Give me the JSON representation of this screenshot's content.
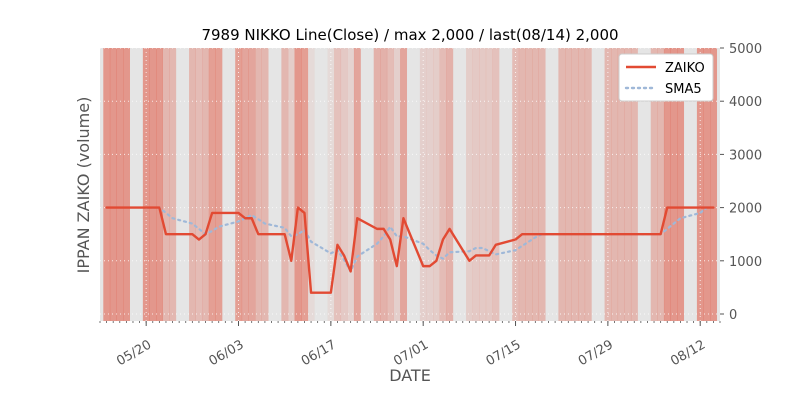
{
  "chart_data": {
    "type": "line",
    "title": "7989 NIKKO Line(Close) / max 2,000 / last(08/14) 2,000",
    "xlabel": "DATE",
    "ylabel": "IPPAN ZAIKO (volume)",
    "y_axis_side": "right",
    "ylim": [
      0,
      5000
    ],
    "y_ticks": [
      0,
      1000,
      2000,
      3000,
      4000,
      5000
    ],
    "y_tick_labels": [
      "0",
      "1000",
      "2000",
      "3000",
      "4000",
      "5000"
    ],
    "x_range": [
      "2024-05-13",
      "2024-08-15"
    ],
    "x_ticks": [
      "2024-05-20",
      "2024-06-03",
      "2024-06-17",
      "2024-07-01",
      "2024-07-15",
      "2024-07-29",
      "2024-08-12"
    ],
    "x_tick_labels": [
      "05/20",
      "06/03",
      "06/17",
      "07/01",
      "07/15",
      "07/29",
      "08/12"
    ],
    "grid": true,
    "legend_position": "top-right",
    "background_shading": "daily vertical bands, darker red where volume is high",
    "series": [
      {
        "name": "ZAIKO",
        "style": "solid",
        "color": "#e24a33",
        "points": [
          [
            "2024-05-14",
            2000
          ],
          [
            "2024-05-15",
            2000
          ],
          [
            "2024-05-16",
            2000
          ],
          [
            "2024-05-17",
            2000
          ],
          [
            "2024-05-20",
            2000
          ],
          [
            "2024-05-21",
            2000
          ],
          [
            "2024-05-22",
            2000
          ],
          [
            "2024-05-23",
            1500
          ],
          [
            "2024-05-24",
            1500
          ],
          [
            "2024-05-27",
            1500
          ],
          [
            "2024-05-28",
            1400
          ],
          [
            "2024-05-29",
            1500
          ],
          [
            "2024-05-30",
            1900
          ],
          [
            "2024-05-31",
            1900
          ],
          [
            "2024-06-03",
            1900
          ],
          [
            "2024-06-04",
            1800
          ],
          [
            "2024-06-05",
            1800
          ],
          [
            "2024-06-06",
            1500
          ],
          [
            "2024-06-07",
            1500
          ],
          [
            "2024-06-10",
            1500
          ],
          [
            "2024-06-11",
            1000
          ],
          [
            "2024-06-12",
            2000
          ],
          [
            "2024-06-13",
            1900
          ],
          [
            "2024-06-14",
            400
          ],
          [
            "2024-06-17",
            400
          ],
          [
            "2024-06-18",
            1300
          ],
          [
            "2024-06-19",
            1100
          ],
          [
            "2024-06-20",
            800
          ],
          [
            "2024-06-21",
            1800
          ],
          [
            "2024-06-24",
            1600
          ],
          [
            "2024-06-25",
            1600
          ],
          [
            "2024-06-26",
            1400
          ],
          [
            "2024-06-27",
            900
          ],
          [
            "2024-06-28",
            1800
          ],
          [
            "2024-07-01",
            900
          ],
          [
            "2024-07-02",
            900
          ],
          [
            "2024-07-03",
            1000
          ],
          [
            "2024-07-04",
            1400
          ],
          [
            "2024-07-05",
            1600
          ],
          [
            "2024-07-08",
            1000
          ],
          [
            "2024-07-09",
            1100
          ],
          [
            "2024-07-10",
            1100
          ],
          [
            "2024-07-11",
            1100
          ],
          [
            "2024-07-12",
            1300
          ],
          [
            "2024-07-15",
            1400
          ],
          [
            "2024-07-16",
            1500
          ],
          [
            "2024-07-17",
            1500
          ],
          [
            "2024-07-18",
            1500
          ],
          [
            "2024-07-19",
            1500
          ],
          [
            "2024-07-22",
            1500
          ],
          [
            "2024-07-23",
            1500
          ],
          [
            "2024-07-24",
            1500
          ],
          [
            "2024-07-25",
            1500
          ],
          [
            "2024-07-26",
            1500
          ],
          [
            "2024-07-29",
            1500
          ],
          [
            "2024-07-30",
            1500
          ],
          [
            "2024-07-31",
            1500
          ],
          [
            "2024-08-01",
            1500
          ],
          [
            "2024-08-02",
            1500
          ],
          [
            "2024-08-05",
            1500
          ],
          [
            "2024-08-06",
            1500
          ],
          [
            "2024-08-07",
            2000
          ],
          [
            "2024-08-08",
            2000
          ],
          [
            "2024-08-09",
            2000
          ],
          [
            "2024-08-12",
            2000
          ],
          [
            "2024-08-13",
            2000
          ],
          [
            "2024-08-14",
            2000
          ]
        ]
      },
      {
        "name": "SMA5",
        "style": "dotted",
        "color": "#9fb8d8",
        "points": [
          [
            "2024-05-20",
            2000
          ],
          [
            "2024-05-21",
            2000
          ],
          [
            "2024-05-22",
            2000
          ],
          [
            "2024-05-23",
            1900
          ],
          [
            "2024-05-24",
            1800
          ],
          [
            "2024-05-27",
            1700
          ],
          [
            "2024-05-28",
            1600
          ],
          [
            "2024-05-29",
            1500
          ],
          [
            "2024-05-30",
            1560
          ],
          [
            "2024-05-31",
            1640
          ],
          [
            "2024-06-03",
            1740
          ],
          [
            "2024-06-04",
            1800
          ],
          [
            "2024-06-05",
            1860
          ],
          [
            "2024-06-06",
            1780
          ],
          [
            "2024-06-07",
            1700
          ],
          [
            "2024-06-10",
            1620
          ],
          [
            "2024-06-11",
            1460
          ],
          [
            "2024-06-12",
            1500
          ],
          [
            "2024-06-13",
            1580
          ],
          [
            "2024-06-14",
            1360
          ],
          [
            "2024-06-17",
            1140
          ],
          [
            "2024-06-18",
            1200
          ],
          [
            "2024-06-19",
            1020
          ],
          [
            "2024-06-20",
            800
          ],
          [
            "2024-06-21",
            1080
          ],
          [
            "2024-06-24",
            1320
          ],
          [
            "2024-06-25",
            1460
          ],
          [
            "2024-06-26",
            1640
          ],
          [
            "2024-06-27",
            1460
          ],
          [
            "2024-06-28",
            1460
          ],
          [
            "2024-07-01",
            1320
          ],
          [
            "2024-07-02",
            1200
          ],
          [
            "2024-07-03",
            1100
          ],
          [
            "2024-07-04",
            1040
          ],
          [
            "2024-07-05",
            1160
          ],
          [
            "2024-07-08",
            1180
          ],
          [
            "2024-07-09",
            1240
          ],
          [
            "2024-07-10",
            1240
          ],
          [
            "2024-07-11",
            1180
          ],
          [
            "2024-07-12",
            1120
          ],
          [
            "2024-07-15",
            1200
          ],
          [
            "2024-07-16",
            1280
          ],
          [
            "2024-07-17",
            1360
          ],
          [
            "2024-07-18",
            1440
          ],
          [
            "2024-07-19",
            1500
          ],
          [
            "2024-07-22",
            1500
          ],
          [
            "2024-07-23",
            1500
          ],
          [
            "2024-07-24",
            1500
          ],
          [
            "2024-07-25",
            1500
          ],
          [
            "2024-07-26",
            1500
          ],
          [
            "2024-07-29",
            1500
          ],
          [
            "2024-07-30",
            1500
          ],
          [
            "2024-07-31",
            1500
          ],
          [
            "2024-08-01",
            1500
          ],
          [
            "2024-08-02",
            1500
          ],
          [
            "2024-08-05",
            1500
          ],
          [
            "2024-08-06",
            1500
          ],
          [
            "2024-08-07",
            1600
          ],
          [
            "2024-08-08",
            1700
          ],
          [
            "2024-08-09",
            1800
          ],
          [
            "2024-08-12",
            1900
          ],
          [
            "2024-08-13",
            2000
          ],
          [
            "2024-08-14",
            2000
          ]
        ]
      }
    ]
  }
}
